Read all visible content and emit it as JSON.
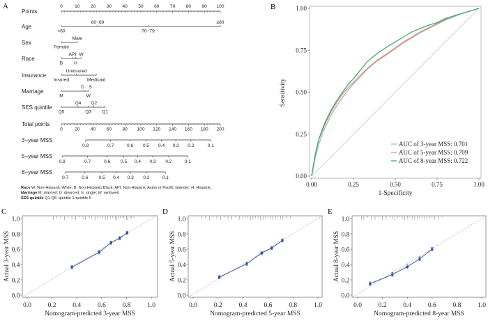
{
  "figure": {
    "panel_labels": [
      "A",
      "B",
      "C",
      "D",
      "E"
    ]
  },
  "chart_data": [
    {
      "panel": "A",
      "type": "nomogram",
      "points_axis": {
        "label": "Points",
        "range": [
          0,
          100
        ],
        "tick_step": 10,
        "minor_step": 2
      },
      "variables": [
        {
          "name": "Age",
          "levels": [
            {
              "label": "<60",
              "points": 0,
              "side": "below"
            },
            {
              "label": "60−69",
              "points": 22.8,
              "side": "above"
            },
            {
              "label": "70−79",
              "points": 54.6,
              "side": "below"
            },
            {
              "label": "≥80",
              "points": 100,
              "side": "above"
            }
          ]
        },
        {
          "name": "Sex",
          "levels": [
            {
              "label": "Female",
              "points": 0,
              "side": "below"
            },
            {
              "label": "Male",
              "points": 10,
              "side": "above"
            }
          ]
        },
        {
          "name": "Race",
          "levels": [
            {
              "label": "B",
              "points": 0,
              "side": "below"
            },
            {
              "label": "API",
              "points": 7,
              "side": "above"
            },
            {
              "label": "H",
              "points": 9,
              "side": "below"
            },
            {
              "label": "W",
              "points": 12.5,
              "side": "above"
            }
          ]
        },
        {
          "name": "Insurance",
          "levels": [
            {
              "label": "Insured",
              "points": 0,
              "side": "below"
            },
            {
              "label": "Uninsured",
              "points": 9.5,
              "side": "above"
            },
            {
              "label": "Medicaid",
              "points": 22,
              "side": "below"
            }
          ]
        },
        {
          "name": "Marriage",
          "levels": [
            {
              "label": "M",
              "points": 0,
              "side": "below"
            },
            {
              "label": "D",
              "points": 14.3,
              "side": "above"
            },
            {
              "label": "S",
              "points": 17,
              "side": "above"
            },
            {
              "label": "W",
              "points": 17,
              "side": "below"
            }
          ]
        },
        {
          "name": "SES quintile",
          "levels": [
            {
              "label": "Q5",
              "points": 0,
              "side": "below"
            },
            {
              "label": "Q4",
              "points": 10.5,
              "side": "above"
            },
            {
              "label": "Q3",
              "points": 17,
              "side": "below"
            },
            {
              "label": "Q2",
              "points": 20.5,
              "side": "above"
            },
            {
              "label": "Q1",
              "points": 27.5,
              "side": "below"
            }
          ]
        }
      ],
      "total_points_axis": {
        "label": "Total points",
        "range": [
          0,
          200
        ],
        "tick_step": 20,
        "minor_step": 4
      },
      "outcome_axes": [
        {
          "name": "3−year MSS",
          "ticks": [
            {
              "label": "0.8",
              "total_points": 30.5
            },
            {
              "label": "0.7",
              "total_points": 62
            },
            {
              "label": "0.6",
              "total_points": 86.5
            },
            {
              "label": "0.5",
              "total_points": 106.5
            },
            {
              "label": "0.4",
              "total_points": 126
            },
            {
              "label": "0.3",
              "total_points": 144
            },
            {
              "label": "0.2",
              "total_points": 163
            },
            {
              "label": "0.1",
              "total_points": 188
            }
          ]
        },
        {
          "name": "5−year MSS",
          "ticks": [
            {
              "label": "0.8",
              "total_points": 1
            },
            {
              "label": "0.7",
              "total_points": 33
            },
            {
              "label": "0.6",
              "total_points": 57.6
            },
            {
              "label": "0.5",
              "total_points": 78.6
            },
            {
              "label": "0.4",
              "total_points": 96
            },
            {
              "label": "0.3",
              "total_points": 115
            },
            {
              "label": "0.2",
              "total_points": 135
            },
            {
              "label": "0.1",
              "total_points": 159
            }
          ]
        },
        {
          "name": "8−year MSS",
          "ticks": [
            {
              "label": "0.7",
              "total_points": 5
            },
            {
              "label": "0.6",
              "total_points": 29.7
            },
            {
              "label": "0.5",
              "total_points": 51
            },
            {
              "label": "0.4",
              "total_points": 69
            },
            {
              "label": "0.3",
              "total_points": 87
            },
            {
              "label": "0.2",
              "total_points": 107
            },
            {
              "label": "0.1",
              "total_points": 131
            }
          ]
        }
      ],
      "footnotes": [
        {
          "key": "Race",
          "text": "W: Non-Hispanic White; B: Non-Hispanic Black; API: Non-Hispanic Asian or Pacific Islander; H: Hispanic"
        },
        {
          "key": "Marriage",
          "text": "M: married; D: divorced; S: single; W: widowed"
        },
        {
          "key": "SES quintile",
          "text": "Q1-Q5: quintile 1-quintile 5"
        }
      ]
    },
    {
      "panel": "B",
      "type": "line",
      "title": "",
      "xlabel": "1-Specificity",
      "ylabel": "Sensitivity",
      "xlim": [
        0,
        1
      ],
      "ylim": [
        0,
        1
      ],
      "xticks": [
        "0.00",
        "0.25",
        "0.50",
        "0.75",
        "1.00"
      ],
      "yticks": [
        "0.00",
        "0.25",
        "0.50",
        "0.75",
        "1.00"
      ],
      "grid": false,
      "legend_position": "bottom-right",
      "reference_line": {
        "x": [
          0,
          1
        ],
        "y": [
          0,
          1
        ],
        "color": "#c8c8c8"
      },
      "x": [
        0,
        0.02,
        0.04,
        0.06,
        0.08,
        0.1,
        0.12,
        0.15,
        0.185,
        0.22,
        0.25,
        0.29,
        0.33,
        0.39,
        0.45,
        0.5,
        0.55,
        0.6,
        0.65,
        0.7,
        0.75,
        0.8,
        0.85,
        0.9,
        0.95,
        1.0
      ],
      "series": [
        {
          "name": "AUC of 3-year MSS: 0.701",
          "color": "#8fb8dc",
          "values": [
            0,
            0.1,
            0.18,
            0.24,
            0.29,
            0.33,
            0.37,
            0.42,
            0.47,
            0.515,
            0.55,
            0.59,
            0.635,
            0.685,
            0.725,
            0.76,
            0.795,
            0.825,
            0.855,
            0.88,
            0.905,
            0.93,
            0.95,
            0.97,
            0.985,
            1.0
          ]
        },
        {
          "name": "AUC of 5-year MSS: 0.709",
          "color": "#f08b5f",
          "values": [
            0,
            0.12,
            0.21,
            0.26,
            0.31,
            0.35,
            0.39,
            0.44,
            0.49,
            0.53,
            0.56,
            0.6,
            0.64,
            0.69,
            0.73,
            0.765,
            0.8,
            0.83,
            0.86,
            0.885,
            0.91,
            0.935,
            0.955,
            0.97,
            0.985,
            1.0
          ]
        },
        {
          "name": "AUC of 8-year MSS: 0.722",
          "color": "#45a878",
          "values": [
            0,
            0.12,
            0.21,
            0.27,
            0.32,
            0.36,
            0.4,
            0.45,
            0.5,
            0.55,
            0.58,
            0.63,
            0.68,
            0.73,
            0.77,
            0.8,
            0.83,
            0.86,
            0.88,
            0.9,
            0.915,
            0.94,
            0.955,
            0.97,
            0.985,
            1.0
          ]
        }
      ]
    },
    {
      "panel": "C",
      "type": "scatter",
      "xlabel": "Nomogram-predicted 3-year MSS",
      "ylabel": "Actual 3-year MSS",
      "xlim": [
        0,
        1
      ],
      "ylim": [
        0,
        1
      ],
      "xticks": [
        "0.0",
        "0.2",
        "0.4",
        "0.6",
        "0.8",
        "1.0"
      ],
      "yticks": [
        "0.0",
        "0.2",
        "0.4",
        "0.6",
        "0.8",
        "1.0"
      ],
      "series": [
        {
          "name": "calibration",
          "color": "#4a67b0",
          "x": [
            0.36,
            0.58,
            0.675,
            0.745,
            0.805
          ],
          "y": [
            0.365,
            0.56,
            0.685,
            0.745,
            0.815
          ],
          "err": [
            0.012,
            0.014,
            0.012,
            0.011,
            0.01
          ]
        }
      ],
      "rug": [
        0.21,
        0.24,
        0.27,
        0.3,
        0.33,
        0.36,
        0.39,
        0.42,
        0.45,
        0.47,
        0.5,
        0.52,
        0.55,
        0.57,
        0.59,
        0.61,
        0.63,
        0.65,
        0.67,
        0.69,
        0.71,
        0.72,
        0.74,
        0.75,
        0.77,
        0.78,
        0.8,
        0.81,
        0.83,
        0.84,
        0.86
      ]
    },
    {
      "panel": "D",
      "type": "scatter",
      "xlabel": "Nomogram-predicted 5-year MSS",
      "ylabel": "Actual 5-year MSS",
      "xlim": [
        0,
        1
      ],
      "ylim": [
        0,
        1
      ],
      "xticks": [
        "0.0",
        "0.2",
        "0.4",
        "0.6",
        "0.8",
        "1.0"
      ],
      "yticks": [
        "0.0",
        "0.2",
        "0.4",
        "0.6",
        "0.8",
        "1.0"
      ],
      "series": [
        {
          "name": "calibration",
          "color": "#4a67b0",
          "x": [
            0.21,
            0.43,
            0.55,
            0.63,
            0.715
          ],
          "y": [
            0.235,
            0.41,
            0.55,
            0.615,
            0.715
          ],
          "err": [
            0.013,
            0.013,
            0.013,
            0.013,
            0.012
          ]
        }
      ],
      "rug": [
        0.07,
        0.1,
        0.13,
        0.16,
        0.19,
        0.22,
        0.25,
        0.28,
        0.31,
        0.34,
        0.37,
        0.4,
        0.42,
        0.44,
        0.46,
        0.48,
        0.5,
        0.52,
        0.54,
        0.56,
        0.58,
        0.6,
        0.62,
        0.64,
        0.66,
        0.68,
        0.7,
        0.72,
        0.75,
        0.78
      ]
    },
    {
      "panel": "E",
      "type": "scatter",
      "xlabel": "Nomogram-predicted 8-year MSS",
      "ylabel": "Actual 8-year MSS",
      "xlim": [
        0,
        1
      ],
      "ylim": [
        0,
        1
      ],
      "xticks": [
        "0.0",
        "0.2",
        "0.4",
        "0.6",
        "0.8",
        "1.0"
      ],
      "yticks": [
        "0.0",
        "0.2",
        "0.4",
        "0.6",
        "0.8",
        "1.0"
      ],
      "series": [
        {
          "name": "calibration",
          "color": "#4a67b0",
          "x": [
            0.1,
            0.28,
            0.4,
            0.5,
            0.6
          ],
          "y": [
            0.15,
            0.27,
            0.37,
            0.475,
            0.6
          ],
          "err": [
            0.014,
            0.016,
            0.017,
            0.017,
            0.015
          ]
        }
      ],
      "rug": [
        0.03,
        0.05,
        0.08,
        0.11,
        0.14,
        0.17,
        0.2,
        0.23,
        0.26,
        0.28,
        0.3,
        0.32,
        0.34,
        0.36,
        0.38,
        0.4,
        0.42,
        0.44,
        0.46,
        0.48,
        0.5,
        0.52,
        0.54,
        0.56,
        0.58,
        0.6,
        0.62,
        0.65,
        0.68
      ]
    }
  ]
}
